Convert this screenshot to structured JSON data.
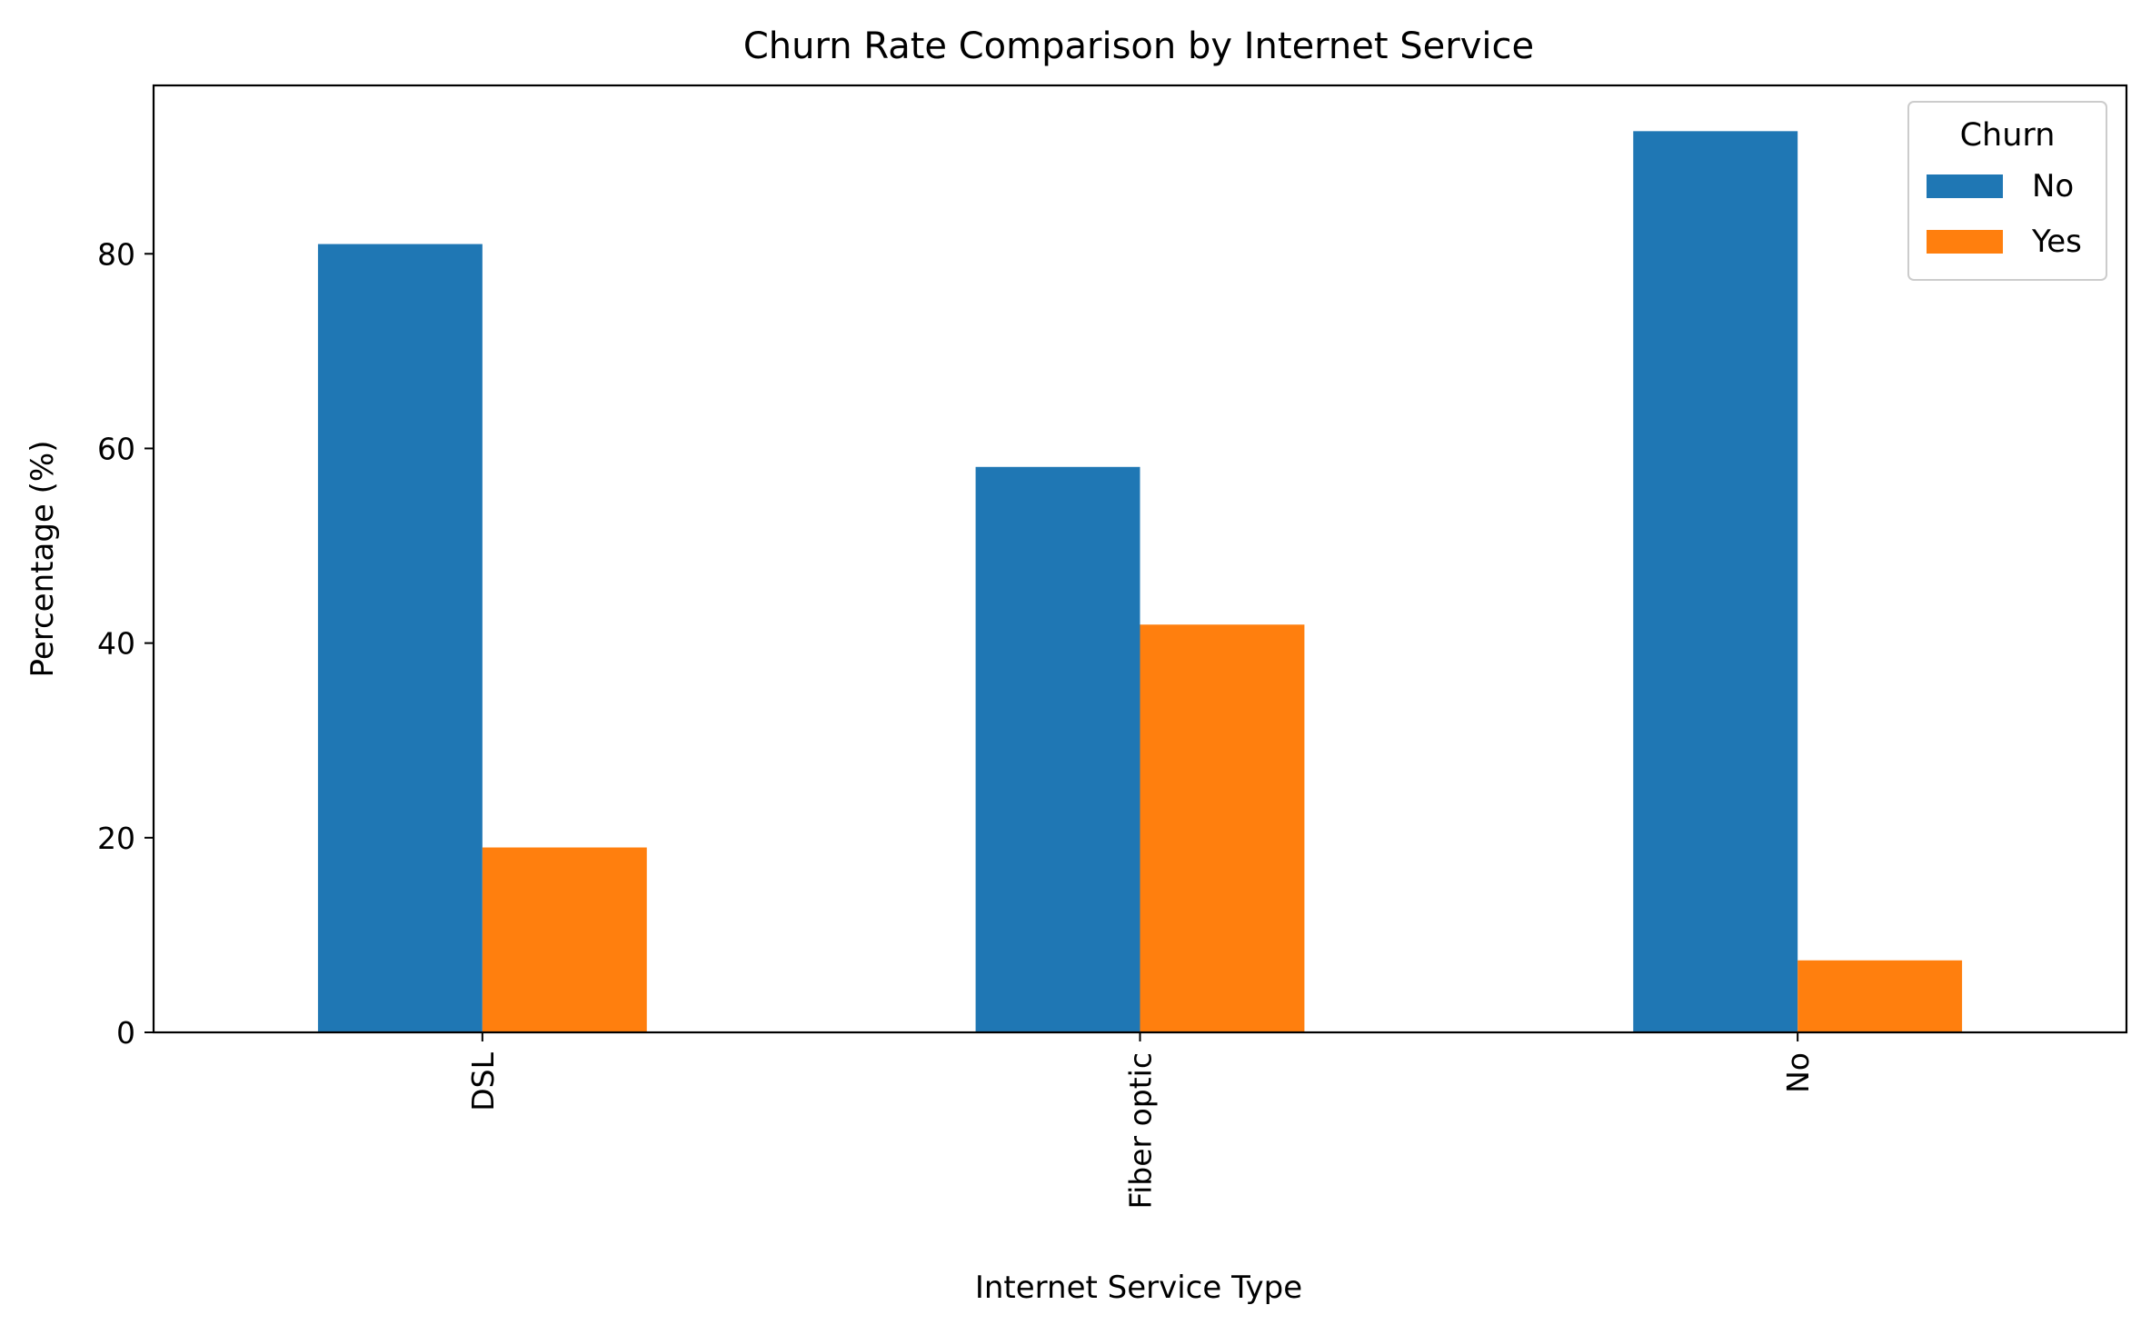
{
  "chart_data": {
    "type": "bar",
    "title": "Churn Rate Comparison by Internet Service",
    "xlabel": "Internet Service Type",
    "ylabel": "Percentage (%)",
    "categories": [
      "DSL",
      "Fiber optic",
      "No"
    ],
    "series": [
      {
        "name": "No",
        "values": [
          81.0,
          58.1,
          92.6
        ]
      },
      {
        "name": "Yes",
        "values": [
          19.0,
          41.9,
          7.4
        ]
      }
    ],
    "ylim": [
      0,
      97.3
    ],
    "yticks": [
      0,
      20,
      40,
      60,
      80
    ],
    "legend": {
      "title": "Churn",
      "position": "top-right"
    },
    "grid": false,
    "colors": {
      "No": "#1f77b4",
      "Yes": "#ff7f0e"
    }
  }
}
